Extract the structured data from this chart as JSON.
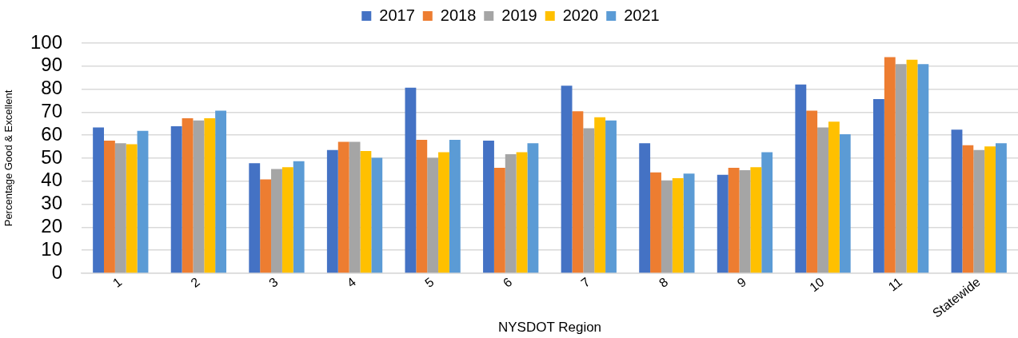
{
  "chart_data": {
    "type": "bar",
    "xlabel": "NYSDOT Region",
    "ylabel": "Percentage Good & Excellent",
    "categories": [
      "1",
      "2",
      "3",
      "4",
      "5",
      "6",
      "7",
      "8",
      "9",
      "10",
      "11",
      "Statewide"
    ],
    "series": [
      {
        "name": "2017",
        "color": "#4472c4",
        "values": [
          63.4,
          63.9,
          47.8,
          53.6,
          80.6,
          57.6,
          81.5,
          56.5,
          42.8,
          82.0,
          75.7,
          62.4
        ]
      },
      {
        "name": "2018",
        "color": "#ed7d31",
        "values": [
          57.6,
          67.4,
          40.8,
          57.1,
          58.0,
          45.8,
          70.4,
          43.8,
          45.8,
          70.7,
          93.9,
          55.6
        ]
      },
      {
        "name": "2019",
        "color": "#a5a5a5",
        "values": [
          56.5,
          66.4,
          45.3,
          57.1,
          50.2,
          51.7,
          63.0,
          40.4,
          44.8,
          63.4,
          90.9,
          53.6
        ]
      },
      {
        "name": "2020",
        "color": "#ffc000",
        "values": [
          56.1,
          67.4,
          46.1,
          53.1,
          52.6,
          52.6,
          67.8,
          41.3,
          46.1,
          65.9,
          92.8,
          55.1
        ]
      },
      {
        "name": "2021",
        "color": "#5b9bd5",
        "values": [
          61.9,
          70.7,
          48.7,
          50.2,
          58.0,
          56.5,
          66.4,
          43.3,
          52.6,
          60.4,
          90.9,
          56.5
        ]
      }
    ],
    "ylim": [
      0,
      100
    ],
    "yticks": [
      0,
      10,
      20,
      30,
      40,
      50,
      60,
      70,
      80,
      90,
      100
    ],
    "grid": "y",
    "legend": "top"
  }
}
